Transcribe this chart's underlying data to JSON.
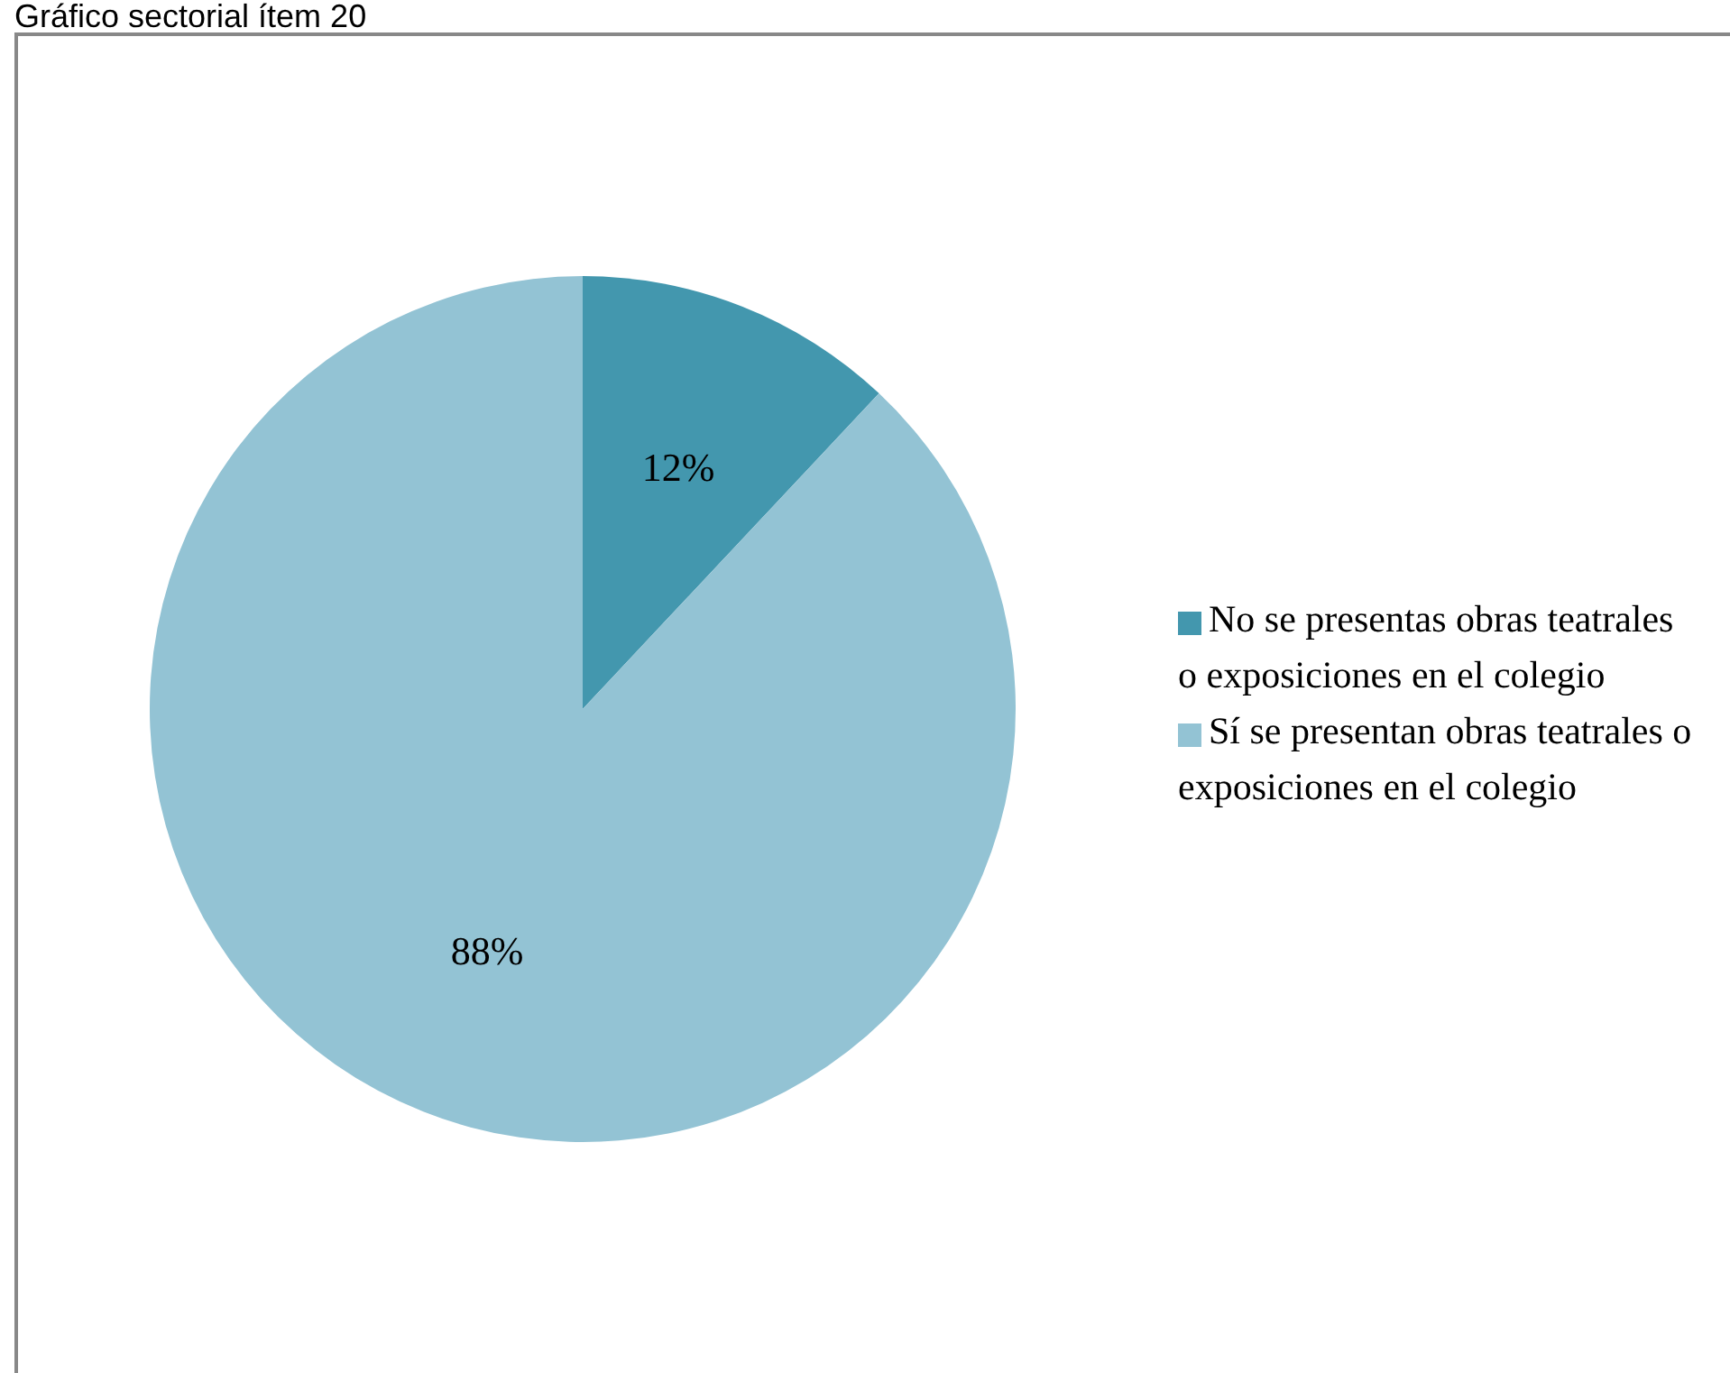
{
  "chart_data": {
    "type": "pie",
    "title": "Gráfico sectorial ítem 20",
    "categories": [
      "No se presentas obras teatrales o exposiciones en el colegio",
      "Sí se presentan obras teatrales o exposiciones en el colegio"
    ],
    "values": [
      12,
      88
    ],
    "colors": [
      "#4397ae",
      "#93c3d4"
    ],
    "value_labels": [
      "12%",
      "88%"
    ],
    "legend": "right"
  }
}
